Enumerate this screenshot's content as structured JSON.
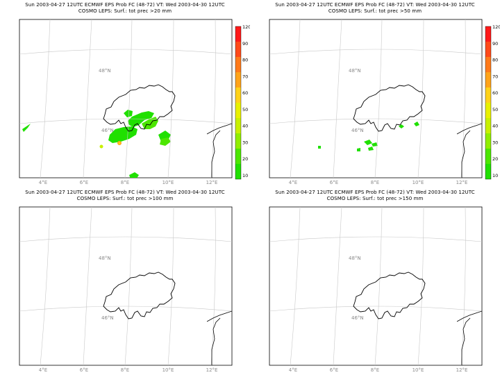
{
  "colorbar": {
    "ticks": [
      "120",
      "90",
      "80",
      "70",
      "60",
      "50",
      "40",
      "30",
      "20",
      "10"
    ],
    "colors": [
      "#ff1a1a",
      "#ff4a1a",
      "#ff7a1a",
      "#ffa31a",
      "#ffd21a",
      "#e8f000",
      "#c8f000",
      "#90ee00",
      "#4ce600",
      "#20e000"
    ]
  },
  "lon_labels": [
    "4°E",
    "6°E",
    "8°E",
    "10°E",
    "12°E"
  ],
  "lat_labels": {
    "n48": "48°N",
    "n46": "46°N"
  },
  "panels": [
    {
      "title_line1": "Sun 2003-04-27 12UTC ECMWF EPS Prob FC (48-72) VT: Wed 2003-04-30 12UTC",
      "title_line2": "COSMO LEPS: Surf.: tot prec >20 mm",
      "has_colorbar": true,
      "precip": "large"
    },
    {
      "title_line1": "Sun 2003-04-27 12UTC ECMWF EPS Prob FC (48-72) VT: Wed 2003-04-30 12UTC",
      "title_line2": "COSMO LEPS: Surf.: tot prec >50 mm",
      "has_colorbar": true,
      "precip": "small"
    },
    {
      "title_line1": "Sun 2003-04-27 12UTC ECMWF EPS Prob FC (48-72) VT: Wed 2003-04-30 12UTC",
      "title_line2": "COSMO LEPS: Surf.: tot prec >100 mm",
      "has_colorbar": false,
      "precip": "none"
    },
    {
      "title_line1": "Sun 2003-04-27 12UTC ECMWF EPS Prob FC (48-72) VT: Wed 2003-04-30 12UTC",
      "title_line2": "COSMO LEPS: Surf.: tot prec >150 mm",
      "has_colorbar": false,
      "precip": "none"
    }
  ]
}
